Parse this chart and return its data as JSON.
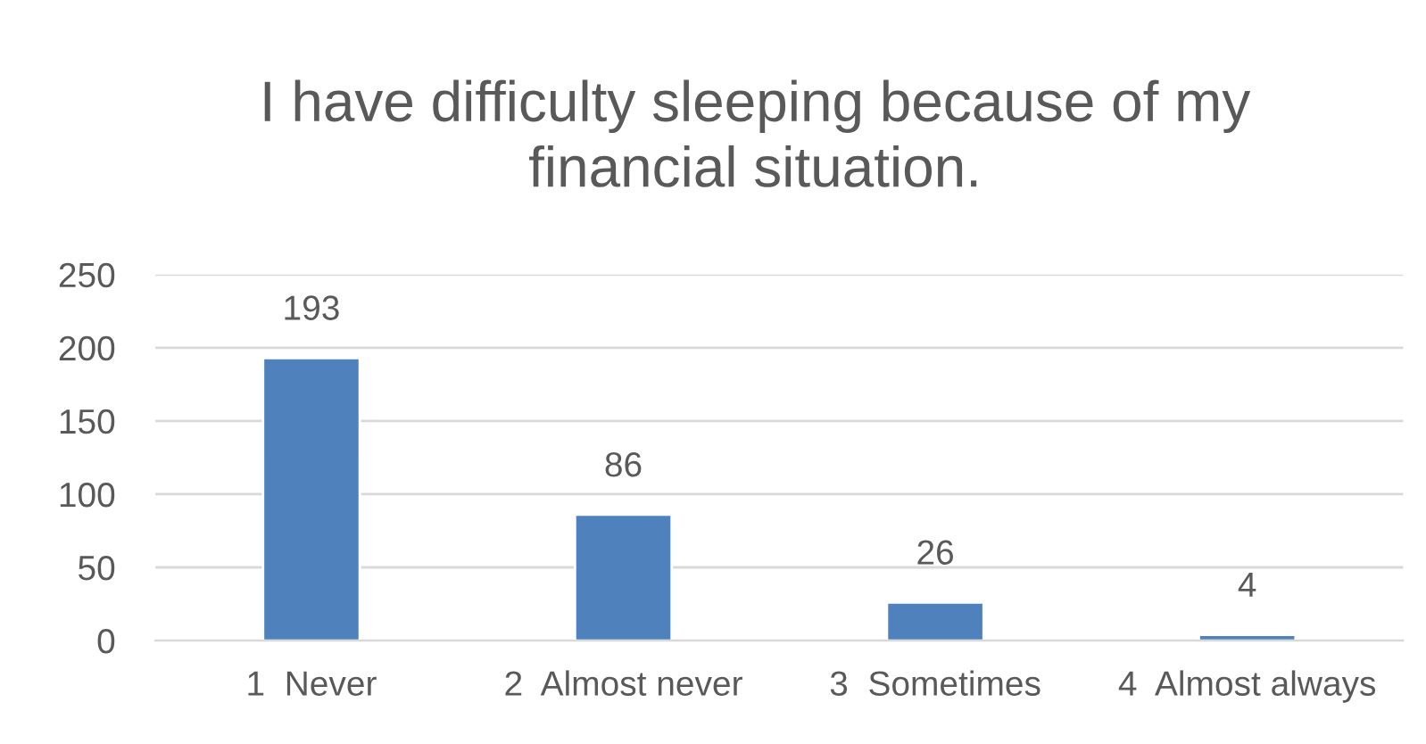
{
  "chart_data": {
    "type": "bar",
    "title": "I have difficulty sleeping because of my financial situation.",
    "categories": [
      "1  Never",
      "2  Almost never",
      "3  Sometimes",
      "4  Almost always"
    ],
    "values": [
      193,
      86,
      26,
      4
    ],
    "color": "#4f81bd",
    "ylim": [
      0,
      250
    ],
    "yticks": [
      0,
      50,
      100,
      150,
      200,
      250
    ],
    "grid": "y",
    "data_labels": true
  }
}
